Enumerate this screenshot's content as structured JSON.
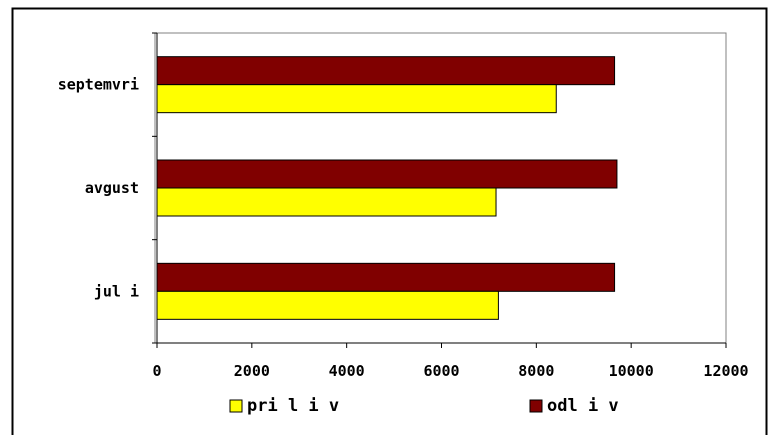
{
  "chart_data": {
    "type": "bar",
    "orientation": "horizontal",
    "categories": [
      "septemvri",
      "avgust",
      "jul i"
    ],
    "series": [
      {
        "name": "odl i v",
        "values": [
          9650,
          9700,
          9650
        ],
        "color": "#800000"
      },
      {
        "name": "pri l i v",
        "values": [
          8420,
          7150,
          7200
        ],
        "color": "#ffff00"
      }
    ],
    "xlim": [
      0,
      12000
    ],
    "xticks": [
      "0",
      "2000",
      "4000",
      "6000",
      "8000",
      "10000",
      "12000"
    ],
    "grid": false,
    "legend_position": "bottom",
    "legend_order": [
      "pri l i v",
      "odl i v"
    ]
  }
}
